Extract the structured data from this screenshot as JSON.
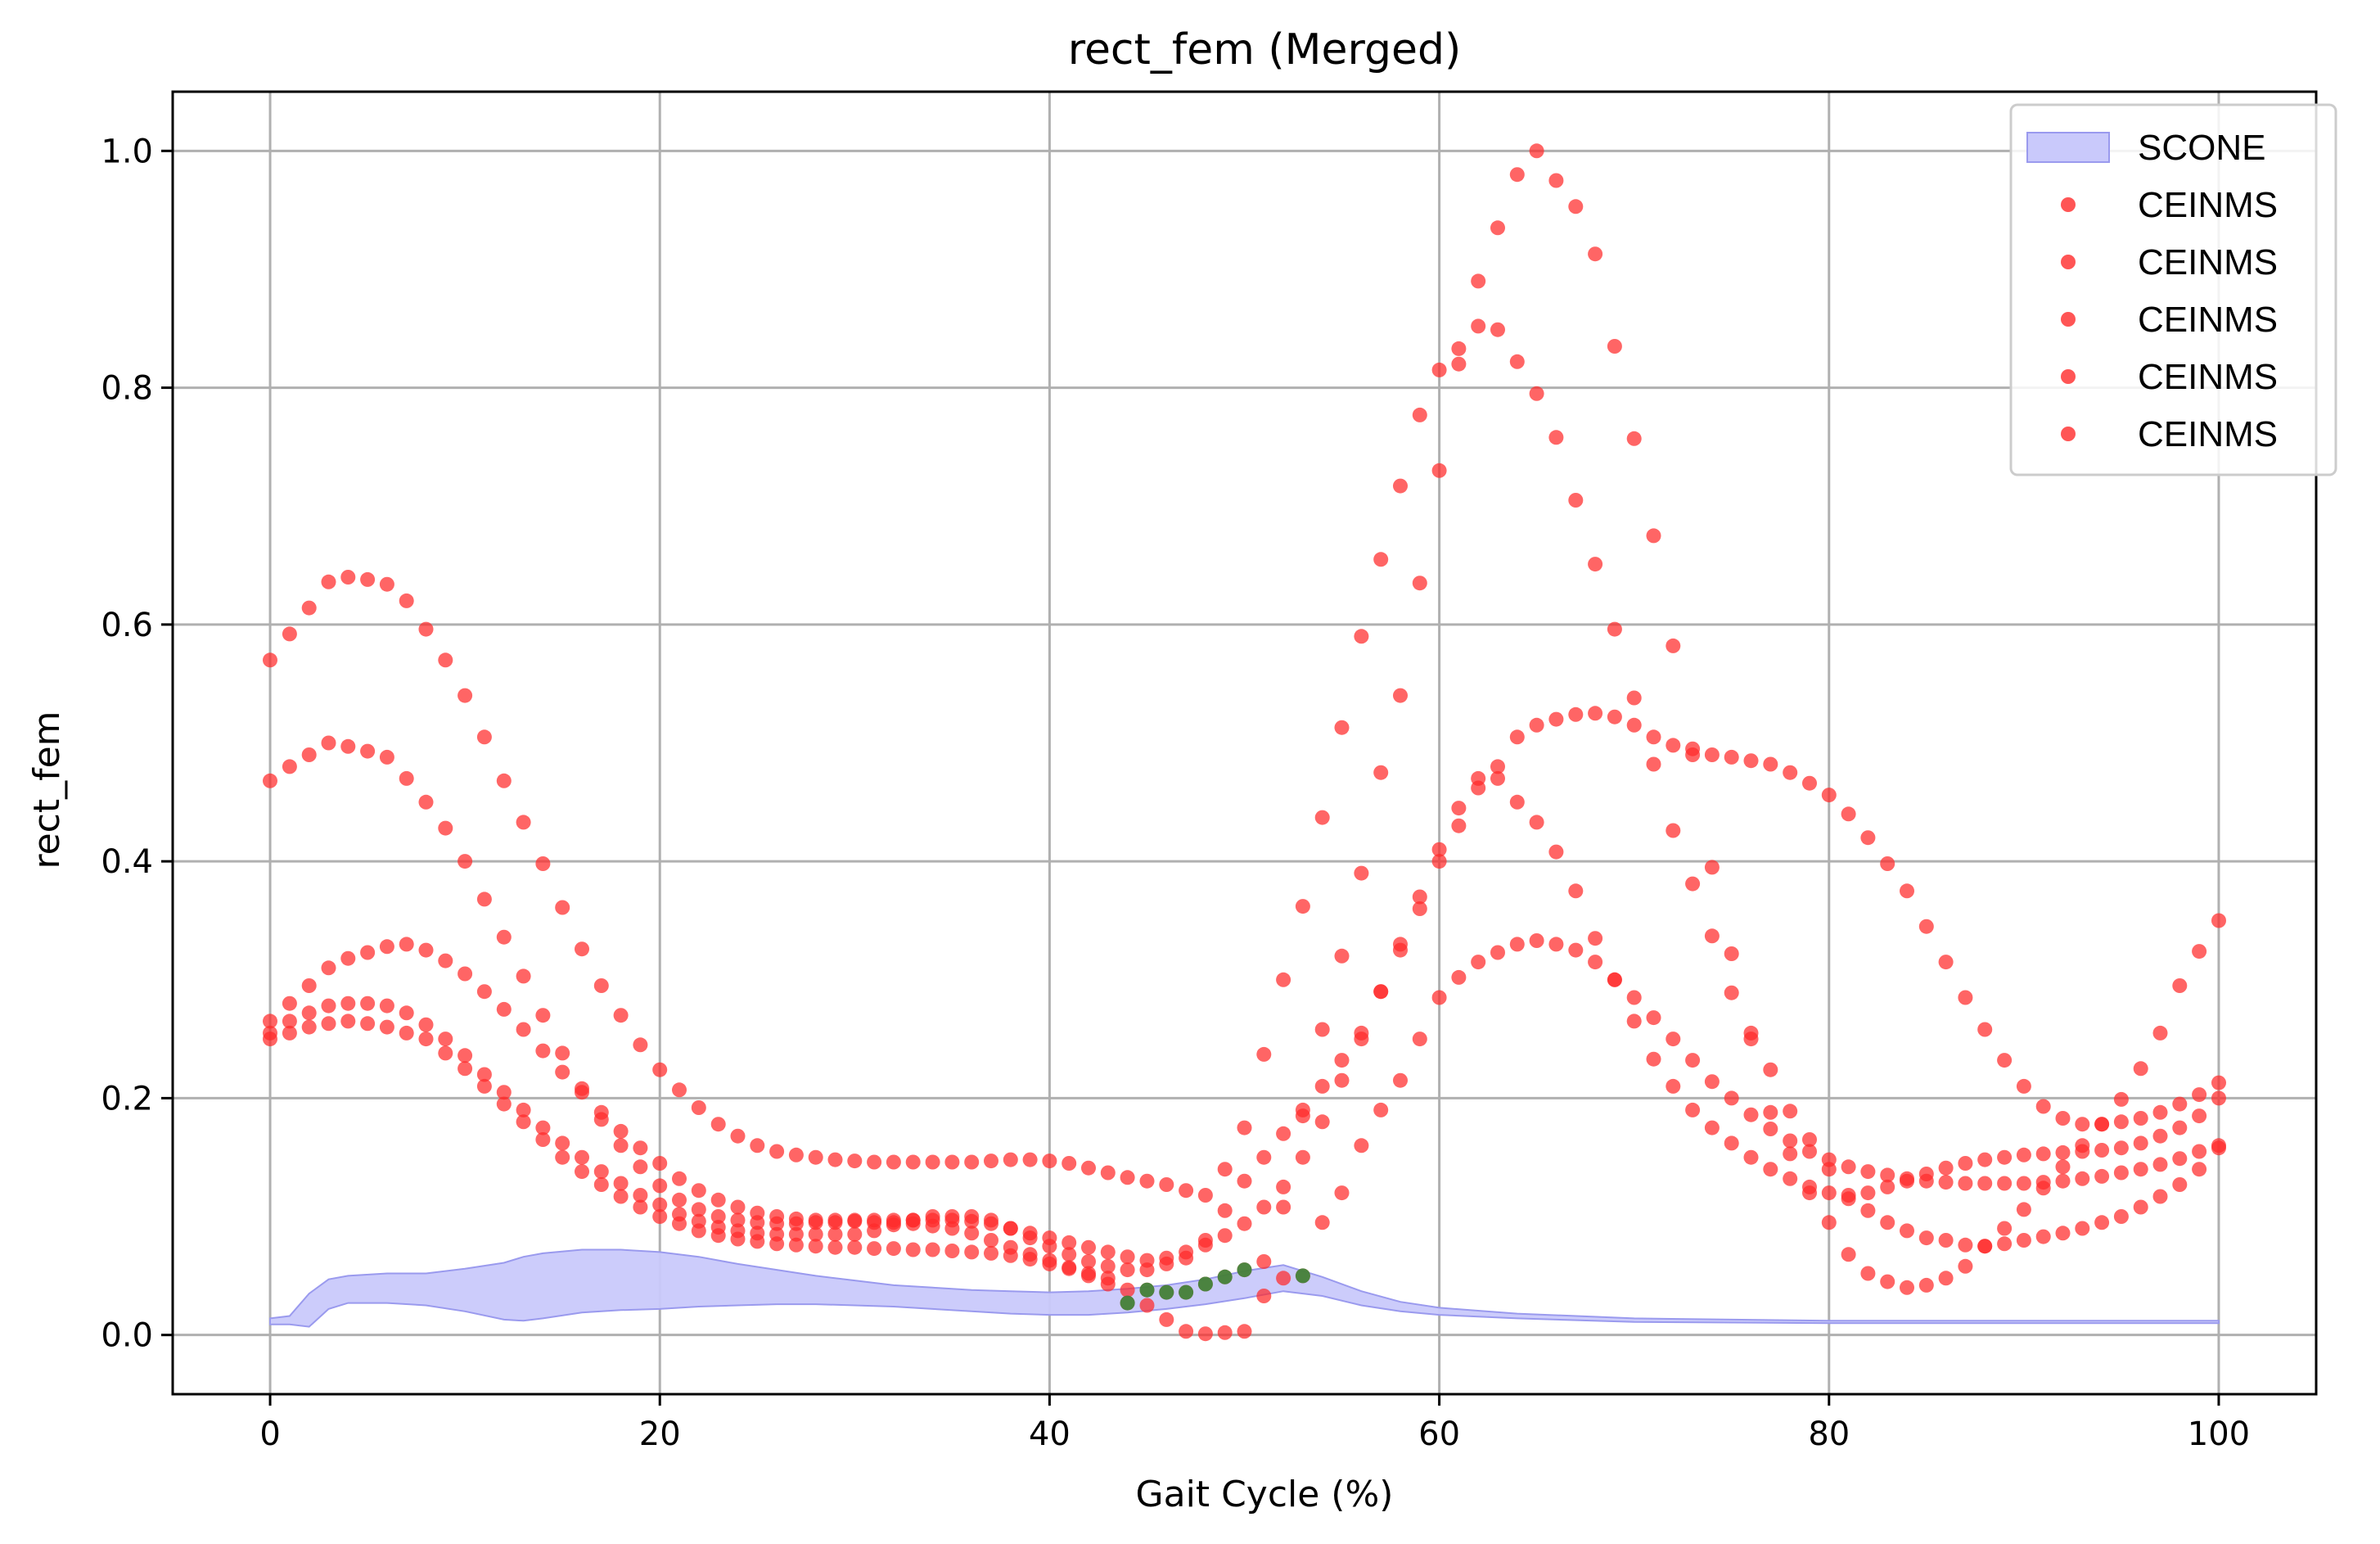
{
  "chart_data": {
    "type": "scatter",
    "title": "rect_fem (Merged)",
    "xlabel": "Gait Cycle (%)",
    "ylabel": "rect_fem",
    "xlim": [
      -5,
      105
    ],
    "ylim": [
      -0.05,
      1.05
    ],
    "xticks": [
      0,
      20,
      40,
      60,
      80,
      100
    ],
    "yticks": [
      0.0,
      0.2,
      0.4,
      0.6,
      0.8,
      1.0
    ],
    "xtick_labels": [
      "0",
      "20",
      "40",
      "60",
      "80",
      "100"
    ],
    "ytick_labels": [
      "0.0",
      "0.2",
      "0.4",
      "0.6",
      "0.8",
      "1.0"
    ],
    "grid": true,
    "legend_position": "top-right",
    "legend": [
      "SCONE",
      "CEINMS",
      "CEINMS",
      "CEINMS",
      "CEINMS",
      "CEINMS"
    ],
    "colors": {
      "scone_fill": "#c9c9fb",
      "scone_edge": "#9a9aee",
      "ceinms": "#ff2a2a",
      "ceinms_overlap": "#2e8b3a",
      "grid": "#b0b0b0"
    },
    "scone_band": {
      "name": "SCONE",
      "x": [
        0,
        1,
        2,
        3,
        4,
        6,
        8,
        10,
        12,
        13,
        14,
        16,
        18,
        20,
        22,
        24,
        26,
        28,
        30,
        32,
        34,
        36,
        38,
        40,
        42,
        44,
        46,
        48,
        50,
        52,
        54,
        56,
        58,
        60,
        64,
        70,
        80,
        90,
        100
      ],
      "upper": [
        0.014,
        0.016,
        0.035,
        0.047,
        0.05,
        0.052,
        0.052,
        0.056,
        0.061,
        0.066,
        0.069,
        0.072,
        0.072,
        0.07,
        0.066,
        0.06,
        0.055,
        0.05,
        0.046,
        0.042,
        0.04,
        0.038,
        0.037,
        0.036,
        0.037,
        0.039,
        0.042,
        0.047,
        0.054,
        0.059,
        0.049,
        0.037,
        0.028,
        0.023,
        0.018,
        0.014,
        0.012,
        0.012,
        0.012
      ],
      "lower": [
        0.009,
        0.009,
        0.007,
        0.022,
        0.027,
        0.027,
        0.025,
        0.02,
        0.013,
        0.012,
        0.014,
        0.019,
        0.021,
        0.022,
        0.024,
        0.025,
        0.026,
        0.026,
        0.025,
        0.024,
        0.022,
        0.02,
        0.018,
        0.017,
        0.017,
        0.019,
        0.022,
        0.026,
        0.031,
        0.037,
        0.033,
        0.025,
        0.02,
        0.017,
        0.014,
        0.011,
        0.01,
        0.01,
        0.01
      ]
    },
    "series": [
      {
        "name": "CEINMS",
        "x": [
          0,
          1,
          2,
          3,
          4,
          5,
          6,
          7,
          8,
          9,
          10,
          11,
          12,
          13,
          14,
          15,
          16,
          17,
          18,
          19,
          20,
          21,
          22,
          23,
          24,
          25,
          26,
          27,
          28,
          29,
          30,
          31,
          32,
          33,
          34,
          35,
          36,
          37,
          38,
          39,
          40,
          41,
          42,
          43,
          44,
          45,
          46,
          47,
          48,
          49,
          50,
          51,
          52,
          53,
          54,
          55,
          56,
          57,
          58,
          59,
          60,
          61,
          62,
          63,
          64,
          65,
          66,
          67,
          68,
          69,
          70,
          71,
          72,
          73,
          74,
          75,
          76,
          77,
          78,
          79,
          80,
          81,
          82,
          83,
          84,
          85,
          86,
          87,
          88,
          89,
          90,
          91,
          92,
          93,
          94,
          95,
          96,
          97,
          98,
          99,
          100
        ],
        "y": [
          0.57,
          0.592,
          0.614,
          0.636,
          0.64,
          0.638,
          0.634,
          0.62,
          0.596,
          0.57,
          0.54,
          0.505,
          0.468,
          0.433,
          0.398,
          0.361,
          0.326,
          0.295,
          0.27,
          0.245,
          0.224,
          0.207,
          0.192,
          0.178,
          0.168,
          0.16,
          0.155,
          0.152,
          0.15,
          0.148,
          0.147,
          0.146,
          0.146,
          0.146,
          0.146,
          0.146,
          0.146,
          0.147,
          0.148,
          0.148,
          0.147,
          0.145,
          0.141,
          0.137,
          0.133,
          0.13,
          0.127,
          0.122,
          0.118,
          0.14,
          0.175,
          0.237,
          0.3,
          0.362,
          0.437,
          0.513,
          0.59,
          0.655,
          0.717,
          0.777,
          0.815,
          0.833,
          0.852,
          0.849,
          0.822,
          0.795,
          0.758,
          0.705,
          0.651,
          0.596,
          0.538,
          0.482,
          0.426,
          0.381,
          0.337,
          0.289,
          0.255,
          0.224,
          0.189,
          0.165,
          0.14,
          0.115,
          0.105,
          0.095,
          0.088,
          0.082,
          0.08,
          0.076,
          0.075,
          0.077,
          0.08,
          0.083,
          0.086,
          0.09,
          0.095,
          0.1,
          0.108,
          0.117,
          0.127,
          0.14,
          0.16
        ]
      },
      {
        "name": "CEINMS",
        "x": [
          0,
          1,
          2,
          3,
          4,
          5,
          6,
          7,
          8,
          9,
          10,
          11,
          12,
          13,
          14,
          15,
          16,
          17,
          18,
          19,
          20,
          21,
          22,
          23,
          24,
          25,
          26,
          27,
          28,
          29,
          30,
          31,
          32,
          33,
          34,
          35,
          36,
          37,
          38,
          39,
          40,
          41,
          42,
          43,
          44,
          45,
          46,
          47,
          48,
          49,
          50,
          51,
          52,
          53,
          54,
          55,
          56,
          57,
          58,
          59,
          60,
          61,
          62,
          63,
          64,
          65,
          66,
          67,
          68,
          69,
          70,
          71,
          72,
          73,
          74,
          75,
          76,
          77,
          78,
          79,
          80,
          81,
          82,
          83,
          84,
          85,
          86,
          87,
          88,
          89,
          90,
          91,
          92,
          93,
          94,
          95,
          96,
          97,
          98,
          99,
          100
        ],
        "y": [
          0.468,
          0.48,
          0.49,
          0.5,
          0.497,
          0.493,
          0.488,
          0.47,
          0.45,
          0.428,
          0.4,
          0.368,
          0.336,
          0.303,
          0.27,
          0.238,
          0.208,
          0.182,
          0.16,
          0.142,
          0.126,
          0.114,
          0.106,
          0.1,
          0.097,
          0.095,
          0.094,
          0.094,
          0.095,
          0.095,
          0.096,
          0.095,
          0.095,
          0.094,
          0.092,
          0.09,
          0.086,
          0.08,
          0.074,
          0.068,
          0.063,
          0.057,
          0.05,
          0.043,
          0.038,
          0.025,
          0.013,
          0.003,
          0.001,
          0.002,
          0.003,
          0.033,
          0.108,
          0.185,
          0.258,
          0.32,
          0.39,
          0.475,
          0.54,
          0.635,
          0.73,
          0.82,
          0.89,
          0.935,
          0.98,
          1.0,
          0.975,
          0.953,
          0.913,
          0.835,
          0.757,
          0.675,
          0.582,
          0.49,
          0.395,
          0.322,
          0.25,
          0.188,
          0.153,
          0.12,
          0.095,
          0.068,
          0.052,
          0.045,
          0.04,
          0.042,
          0.048,
          0.058,
          0.075,
          0.09,
          0.106,
          0.124,
          0.142,
          0.16,
          0.178,
          0.199,
          0.225,
          0.255,
          0.295,
          0.324,
          0.35
        ]
      },
      {
        "name": "CEINMS",
        "x": [
          0,
          1,
          2,
          3,
          4,
          5,
          6,
          7,
          8,
          9,
          10,
          11,
          12,
          13,
          14,
          15,
          16,
          17,
          18,
          19,
          20,
          21,
          22,
          23,
          24,
          25,
          26,
          27,
          28,
          29,
          30,
          31,
          32,
          33,
          34,
          35,
          36,
          37,
          38,
          39,
          40,
          41,
          42,
          43,
          44,
          45,
          46,
          47,
          48,
          49,
          50,
          51,
          52,
          53,
          54,
          55,
          56,
          57,
          58,
          59,
          60,
          61,
          62,
          63,
          64,
          65,
          66,
          67,
          68,
          69,
          70,
          71,
          72,
          73,
          74,
          75,
          76,
          77,
          78,
          79,
          80,
          81,
          82,
          83,
          84,
          85,
          86,
          87,
          88,
          89,
          90,
          91,
          92,
          93,
          94,
          95,
          96,
          97,
          98,
          99,
          100
        ],
        "y": [
          0.265,
          0.28,
          0.295,
          0.31,
          0.318,
          0.323,
          0.328,
          0.33,
          0.325,
          0.316,
          0.305,
          0.29,
          0.275,
          0.258,
          0.24,
          0.222,
          0.205,
          0.188,
          0.172,
          0.158,
          0.145,
          0.132,
          0.122,
          0.114,
          0.108,
          0.103,
          0.1,
          0.098,
          0.097,
          0.097,
          0.097,
          0.097,
          0.097,
          0.097,
          0.097,
          0.097,
          0.096,
          0.094,
          0.09,
          0.086,
          0.082,
          0.078,
          0.074,
          0.07,
          0.066,
          0.063,
          0.065,
          0.07,
          0.076,
          0.084,
          0.094,
          0.108,
          0.125,
          0.15,
          0.18,
          0.215,
          0.25,
          0.29,
          0.33,
          0.37,
          0.41,
          0.445,
          0.47,
          0.48,
          0.505,
          0.515,
          0.52,
          0.524,
          0.525,
          0.522,
          0.515,
          0.505,
          0.498,
          0.495,
          0.49,
          0.488,
          0.485,
          0.482,
          0.475,
          0.466,
          0.456,
          0.44,
          0.42,
          0.398,
          0.375,
          0.345,
          0.315,
          0.285,
          0.258,
          0.232,
          0.21,
          0.193,
          0.183,
          0.178,
          0.178,
          0.18,
          0.183,
          0.188,
          0.195,
          0.203,
          0.213
        ]
      },
      {
        "name": "CEINMS",
        "x": [
          0,
          1,
          2,
          3,
          4,
          5,
          6,
          7,
          8,
          9,
          10,
          11,
          12,
          13,
          14,
          15,
          16,
          17,
          18,
          19,
          20,
          21,
          22,
          23,
          24,
          25,
          26,
          27,
          28,
          29,
          30,
          31,
          32,
          33,
          34,
          35,
          36,
          37,
          38,
          39,
          40,
          41,
          42,
          43,
          44,
          45,
          46,
          47,
          48,
          49,
          50,
          51,
          52,
          53,
          54,
          55,
          56,
          57,
          58,
          59,
          60,
          61,
          62,
          63,
          64,
          65,
          66,
          67,
          68,
          69,
          70,
          71,
          72,
          73,
          74,
          75,
          76,
          77,
          78,
          79,
          80,
          81,
          82,
          83,
          84,
          85,
          86,
          87,
          88,
          89,
          90,
          91,
          92,
          93,
          94,
          95,
          96,
          97,
          98,
          99,
          100
        ],
        "y": [
          0.255,
          0.265,
          0.272,
          0.278,
          0.28,
          0.28,
          0.278,
          0.272,
          0.262,
          0.25,
          0.236,
          0.22,
          0.205,
          0.19,
          0.175,
          0.162,
          0.15,
          0.138,
          0.128,
          0.118,
          0.11,
          0.102,
          0.096,
          0.091,
          0.088,
          0.086,
          0.085,
          0.085,
          0.085,
          0.085,
          0.085,
          0.088,
          0.093,
          0.097,
          0.1,
          0.1,
          0.1,
          0.097,
          0.09,
          0.082,
          0.075,
          0.068,
          0.062,
          0.058,
          0.055,
          0.055,
          0.06,
          0.065,
          0.08,
          0.105,
          0.13,
          0.15,
          0.17,
          0.19,
          0.21,
          0.232,
          0.255,
          0.29,
          0.325,
          0.36,
          0.4,
          0.43,
          0.462,
          0.47,
          0.45,
          0.433,
          0.408,
          0.375,
          0.335,
          0.3,
          0.265,
          0.233,
          0.21,
          0.19,
          0.175,
          0.162,
          0.15,
          0.14,
          0.132,
          0.125,
          0.12,
          0.118,
          0.12,
          0.125,
          0.13,
          0.136,
          0.141,
          0.145,
          0.148,
          0.15,
          0.152,
          0.153,
          0.154,
          0.155,
          0.156,
          0.158,
          0.162,
          0.168,
          0.175,
          0.185,
          0.2
        ]
      },
      {
        "name": "CEINMS",
        "x": [
          0,
          1,
          2,
          3,
          4,
          5,
          6,
          7,
          8,
          9,
          10,
          11,
          12,
          13,
          14,
          15,
          16,
          17,
          18,
          19,
          20,
          21,
          22,
          23,
          24,
          25,
          26,
          27,
          28,
          29,
          30,
          31,
          32,
          33,
          34,
          35,
          36,
          37,
          38,
          39,
          40,
          41,
          42,
          43,
          44,
          45,
          46,
          47,
          48,
          49,
          50,
          51,
          52,
          53,
          54,
          55,
          56,
          57,
          58,
          59,
          60,
          61,
          62,
          63,
          64,
          65,
          66,
          67,
          68,
          69,
          70,
          71,
          72,
          73,
          74,
          75,
          76,
          77,
          78,
          79,
          80,
          81,
          82,
          83,
          84,
          85,
          86,
          87,
          88,
          89,
          90,
          91,
          92,
          93,
          94,
          95,
          96,
          97,
          98,
          99,
          100
        ],
        "y": [
          0.25,
          0.255,
          0.26,
          0.263,
          0.265,
          0.263,
          0.26,
          0.255,
          0.25,
          0.238,
          0.225,
          0.21,
          0.195,
          0.18,
          0.165,
          0.15,
          0.138,
          0.127,
          0.117,
          0.108,
          0.1,
          0.094,
          0.088,
          0.084,
          0.081,
          0.079,
          0.077,
          0.076,
          0.075,
          0.074,
          0.074,
          0.073,
          0.073,
          0.072,
          0.072,
          0.071,
          0.07,
          0.069,
          0.067,
          0.064,
          0.06,
          0.056,
          0.052,
          0.048,
          0.027,
          0.038,
          0.036,
          0.036,
          0.043,
          0.049,
          0.055,
          0.062,
          0.048,
          0.05,
          0.095,
          0.12,
          0.16,
          0.19,
          0.215,
          0.25,
          0.285,
          0.302,
          0.315,
          0.323,
          0.33,
          0.333,
          0.33,
          0.325,
          0.315,
          0.3,
          0.285,
          0.268,
          0.25,
          0.232,
          0.214,
          0.2,
          0.186,
          0.174,
          0.164,
          0.155,
          0.148,
          0.142,
          0.138,
          0.135,
          0.132,
          0.13,
          0.129,
          0.128,
          0.128,
          0.128,
          0.128,
          0.129,
          0.13,
          0.132,
          0.134,
          0.137,
          0.14,
          0.144,
          0.149,
          0.155,
          0.158
        ]
      }
    ],
    "overlap_points": {
      "x": [
        44,
        45,
        46,
        47,
        48,
        49,
        50,
        53
      ],
      "y": [
        0.027,
        0.038,
        0.036,
        0.036,
        0.043,
        0.049,
        0.055,
        0.05
      ]
    }
  }
}
